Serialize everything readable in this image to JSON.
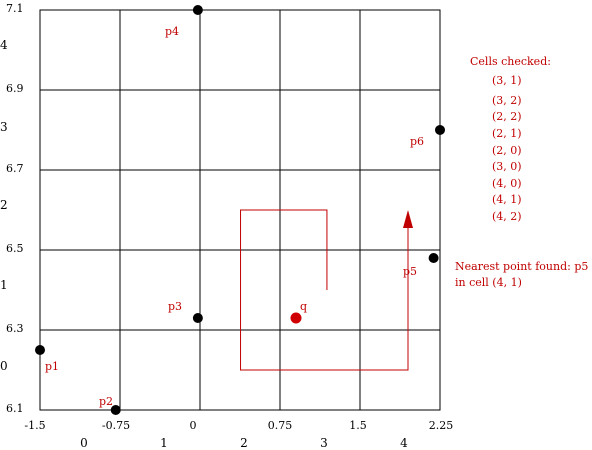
{
  "x_ticks": [
    "-1.5",
    "-0.75",
    "0",
    "0.75",
    "1.5",
    "2.25"
  ],
  "y_ticks": [
    "7.1",
    "6.9",
    "6.7",
    "6.5",
    "6.3",
    "6.1"
  ],
  "col_indices": [
    "0",
    "1",
    "2",
    "3",
    "4"
  ],
  "row_indices": [
    "4",
    "3",
    "2",
    "1",
    "0"
  ],
  "points": [
    {
      "label": "p1",
      "x": -1.5,
      "y": 6.25
    },
    {
      "label": "p2",
      "x": -0.79,
      "y": 6.1
    },
    {
      "label": "p3",
      "x": -0.02,
      "y": 6.33
    },
    {
      "label": "p4",
      "x": -0.02,
      "y": 7.1
    },
    {
      "label": "p5",
      "x": 2.19,
      "y": 6.48
    },
    {
      "label": "p6",
      "x": 2.25,
      "y": 6.8
    }
  ],
  "query": {
    "label": "q",
    "x": 0.9,
    "y": 6.33
  },
  "search_path": [
    {
      "x": 1.19,
      "y": 6.4
    },
    {
      "x": 1.19,
      "y": 6.6
    },
    {
      "x": 0.38,
      "y": 6.6
    },
    {
      "x": 0.38,
      "y": 6.2
    },
    {
      "x": 1.95,
      "y": 6.2
    },
    {
      "x": 1.95,
      "y": 6.6
    }
  ],
  "cells_checked": {
    "title": "Cells checked:",
    "items": [
      "(3, 1)",
      "(3, 2)",
      "(2, 2)",
      "(2, 1)",
      "(2, 0)",
      "(3, 0)",
      "(4, 0)",
      "(4, 1)",
      "(4, 2)"
    ]
  },
  "result": {
    "line1": "Nearest point found: p5",
    "line2": "in cell (4, 1)"
  },
  "colors": {
    "grid": "#000000",
    "path": "#c00000",
    "point": "#000000",
    "query": "#d00000"
  }
}
